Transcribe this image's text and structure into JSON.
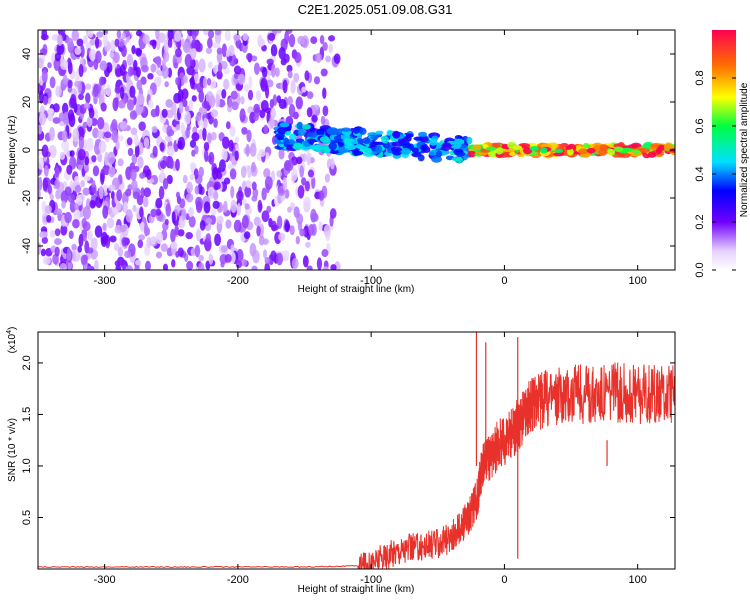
{
  "title": "C2E1.2025.051.09.08.G31",
  "colorbar": {
    "label": "Normalized spectral amplitude",
    "range": [
      0.0,
      1.0
    ],
    "tick_labels": [
      "0.0",
      "0.2",
      "0.4",
      "0.6",
      "0.8"
    ],
    "tick_values": [
      0.0,
      0.2,
      0.4,
      0.6,
      0.8
    ]
  },
  "chart_data": [
    {
      "type": "heatmap",
      "title": "",
      "xlabel": "Height of straight line (km)",
      "ylabel": "Frequency (Hz)",
      "xlim": [
        -350,
        128
      ],
      "ylim": [
        -50,
        50
      ],
      "x_tick_labels": [
        "-300",
        "-200",
        "-100",
        "0",
        "100"
      ],
      "x_tick_values": [
        -300,
        -200,
        -100,
        0,
        100
      ],
      "y_tick_labels": [
        "-40",
        "-20",
        "0",
        "20",
        "40"
      ],
      "y_tick_values": [
        -40,
        -20,
        0,
        20,
        40
      ],
      "grid": false,
      "regions": [
        {
          "name": "noise",
          "x_range": [
            -350,
            -125
          ],
          "freq_range": [
            -50,
            50
          ],
          "amplitude": 0.2
        },
        {
          "name": "transition",
          "x_range": [
            -170,
            -25
          ],
          "freq_center": [
            6,
            0
          ],
          "freq_halfwidth": 5,
          "amplitude": 0.45
        },
        {
          "name": "direct",
          "x_range": [
            -25,
            128
          ],
          "freq_center": [
            0,
            0
          ],
          "freq_halfwidth": 2,
          "amplitude": 0.95
        }
      ]
    },
    {
      "type": "line",
      "title": "",
      "xlabel": "Height of straight line (km)",
      "ylabel": "SNR (10 * v/v)",
      "y_multiplier_label": "(x10",
      "y_multiplier_exp": "4",
      "xlim": [
        -350,
        128
      ],
      "ylim": [
        0,
        2.3
      ],
      "x_tick_labels": [
        "-300",
        "-200",
        "-100",
        "0",
        "100"
      ],
      "x_tick_values": [
        -300,
        -200,
        -100,
        0,
        100
      ],
      "y_tick_labels": [
        "0.5",
        "1.0",
        "1.5",
        "2.0"
      ],
      "y_tick_values": [
        0.5,
        1.0,
        1.5,
        2.0
      ],
      "grid": false,
      "series": [
        {
          "color": "#e8312a",
          "x": [
            -350,
            -300,
            -250,
            -200,
            -150,
            -110,
            -100,
            -90,
            -80,
            -70,
            -60,
            -50,
            -40,
            -35,
            -30,
            -25,
            -20,
            -18,
            -15,
            -10,
            -5,
            0,
            5,
            10,
            15,
            20,
            25,
            30,
            40,
            50,
            60,
            70,
            80,
            90,
            100,
            110,
            120,
            128
          ],
          "y": [
            0.02,
            0.02,
            0.02,
            0.02,
            0.02,
            0.03,
            0.05,
            0.12,
            0.18,
            0.2,
            0.22,
            0.25,
            0.3,
            0.38,
            0.45,
            0.55,
            0.7,
            0.9,
            1.05,
            1.1,
            1.2,
            1.25,
            1.3,
            1.4,
            1.5,
            1.58,
            1.62,
            1.65,
            1.68,
            1.7,
            1.7,
            1.71,
            1.72,
            1.71,
            1.7,
            1.69,
            1.69,
            1.7
          ]
        }
      ],
      "spikes": [
        {
          "x": -21,
          "y": 2.3
        },
        {
          "x": -14,
          "y": 2.2
        },
        {
          "x": 10,
          "y": 2.25
        },
        {
          "x": 10,
          "y": 0.1
        },
        {
          "x": 77,
          "y": 1.25
        }
      ]
    }
  ]
}
